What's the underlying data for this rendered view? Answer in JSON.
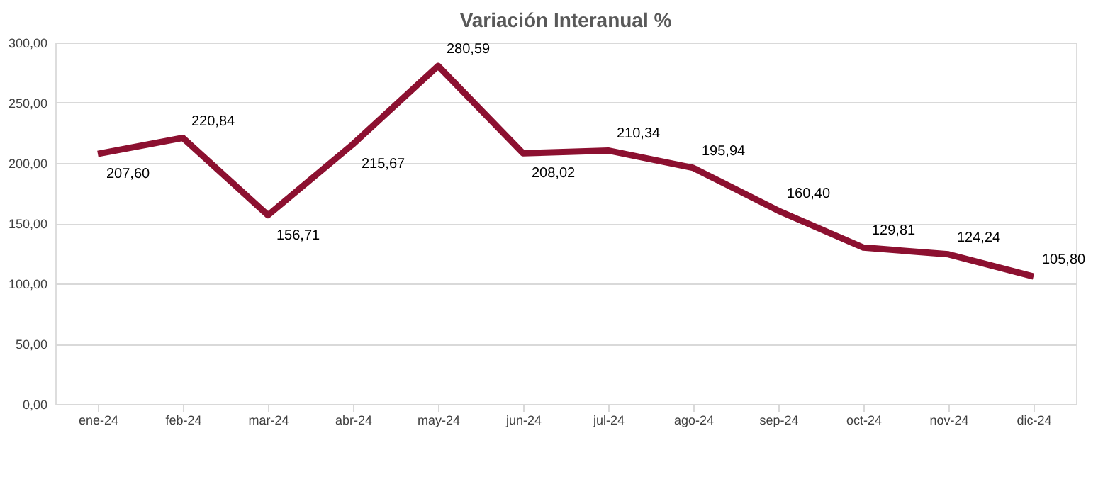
{
  "chart_data": {
    "type": "line",
    "title": "Variación Interanual %",
    "categories": [
      "ene-24",
      "feb-24",
      "mar-24",
      "abr-24",
      "may-24",
      "jun-24",
      "jul-24",
      "ago-24",
      "sep-24",
      "oct-24",
      "nov-24",
      "dic-24"
    ],
    "series": [
      {
        "color": "#8c1030",
        "values": [
          207.6,
          220.84,
          156.71,
          215.67,
          280.59,
          208.02,
          210.34,
          195.94,
          160.4,
          129.81,
          124.24,
          105.8
        ],
        "value_labels": [
          "207,60",
          "220,84",
          "156,71",
          "215,67",
          "280,59",
          "208,02",
          "210,34",
          "195,94",
          "160,40",
          "129,81",
          "124,24",
          "105,80"
        ]
      }
    ],
    "ylim": [
      0,
      300
    ],
    "yticks": [
      {
        "value": 0,
        "label": "0,00"
      },
      {
        "value": 50,
        "label": "50,00"
      },
      {
        "value": 100,
        "label": "100,00"
      },
      {
        "value": 150,
        "label": "150,00"
      },
      {
        "value": 200,
        "label": "200,00"
      },
      {
        "value": 250,
        "label": "250,00"
      },
      {
        "value": 300,
        "label": "300,00"
      }
    ],
    "grid": "y",
    "marker": "none",
    "line_style": "solid"
  }
}
